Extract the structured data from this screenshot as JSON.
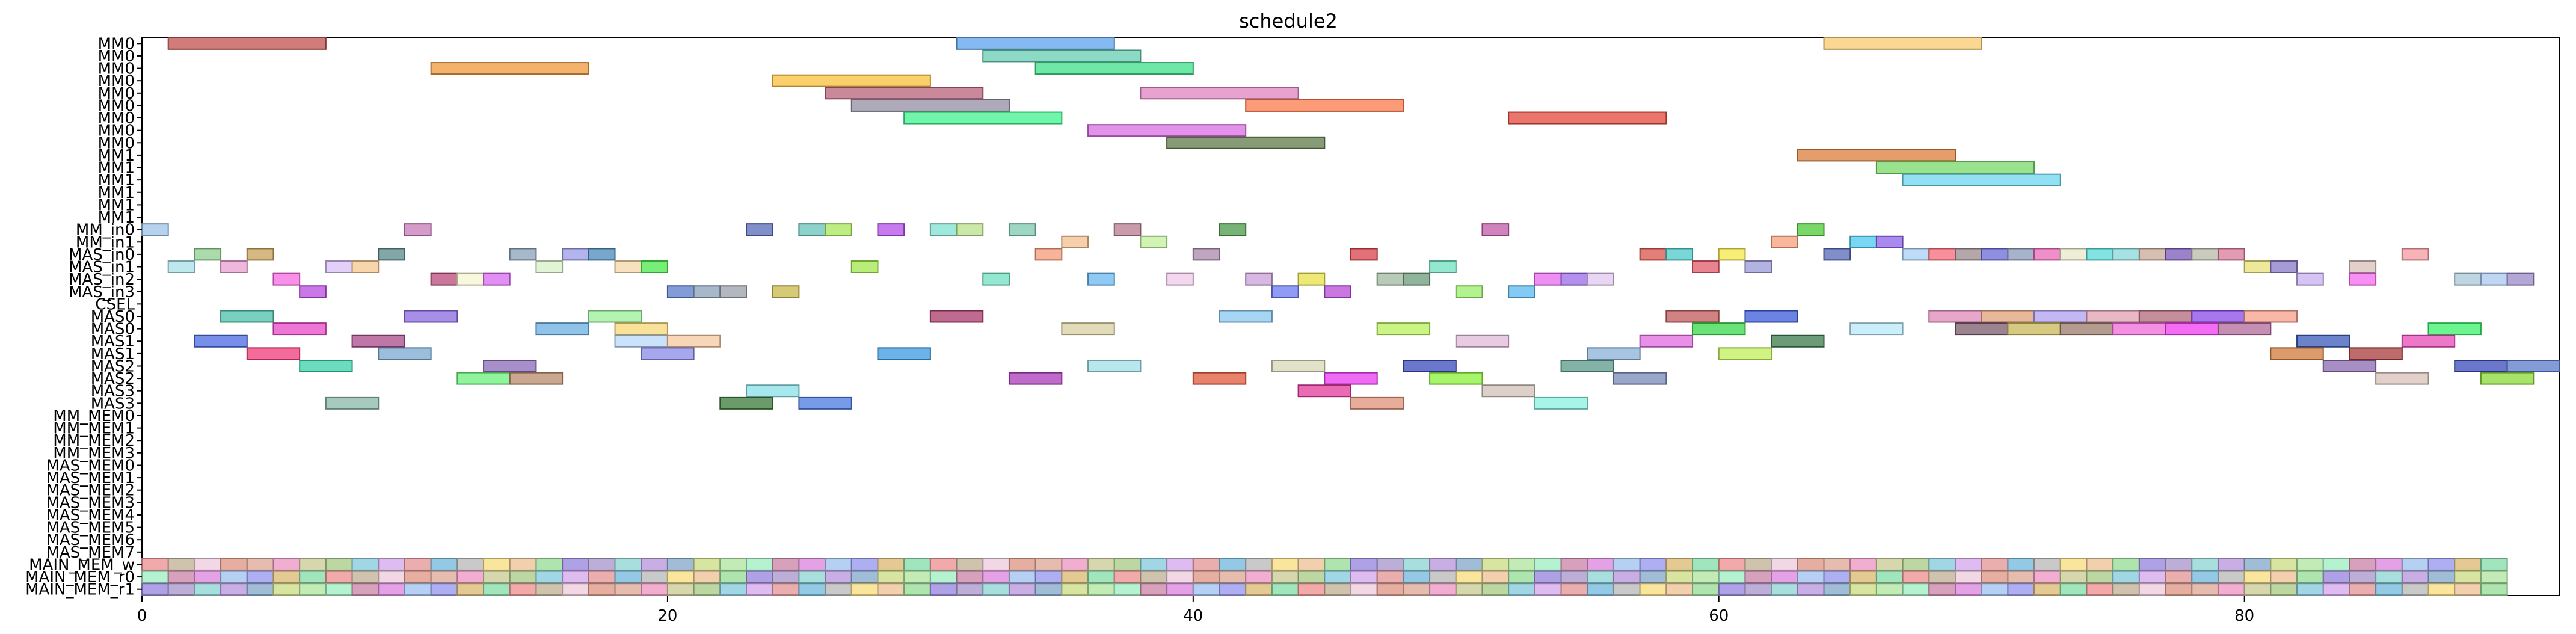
{
  "chart_data": {
    "type": "gantt",
    "title": "schedule2",
    "xlabel": "",
    "ylabel": "",
    "xlim": [
      0,
      92
    ],
    "x_ticks": [
      0,
      20,
      40,
      60,
      80
    ],
    "grid": false,
    "legend": "none",
    "rows": [
      "MM0",
      "MM0",
      "MM0",
      "MM0",
      "MM0",
      "MM0",
      "MM0",
      "MM0",
      "MM0",
      "MM1",
      "MM1",
      "MM1",
      "MM1",
      "MM1",
      "MM1",
      "MM_in0",
      "MM_in1",
      "MAS_in0",
      "MAS_in1",
      "MAS_in2",
      "MAS_in3",
      "CSEL",
      "MAS0",
      "MAS0",
      "MAS1",
      "MAS1",
      "MAS2",
      "MAS2",
      "MAS3",
      "MAS3",
      "MM_MEM0",
      "MM_MEM1",
      "MM_MEM2",
      "MM_MEM3",
      "MAS_MEM0",
      "MAS_MEM1",
      "MAS_MEM2",
      "MAS_MEM3",
      "MAS_MEM4",
      "MAS_MEM5",
      "MAS_MEM6",
      "MAS_MEM7",
      "MAIN_MEM_w",
      "MAIN_MEM_r0",
      "MAIN_MEM_r1"
    ],
    "segments": [
      {
        "row": 0,
        "start": 1,
        "end": 7,
        "color": "#c0504d"
      },
      {
        "row": 0,
        "start": 31,
        "end": 37,
        "color": "#5ba3ec"
      },
      {
        "row": 0,
        "start": 64,
        "end": 70,
        "color": "#f8c96e"
      },
      {
        "row": 1,
        "start": 32,
        "end": 38,
        "color": "#66ccb3"
      },
      {
        "row": 2,
        "start": 11,
        "end": 17,
        "color": "#ef9a3e"
      },
      {
        "row": 2,
        "start": 34,
        "end": 40,
        "color": "#3fdf8a"
      },
      {
        "row": 3,
        "start": 24,
        "end": 30,
        "color": "#fbbf3c"
      },
      {
        "row": 4,
        "start": 26,
        "end": 32,
        "color": "#b8627a"
      },
      {
        "row": 4,
        "start": 38,
        "end": 44,
        "color": "#e083c0"
      },
      {
        "row": 5,
        "start": 27,
        "end": 33,
        "color": "#938ea3"
      },
      {
        "row": 5,
        "start": 42,
        "end": 48,
        "color": "#fb7a4a"
      },
      {
        "row": 6,
        "start": 29,
        "end": 35,
        "color": "#3ff38e"
      },
      {
        "row": 6,
        "start": 52,
        "end": 58,
        "color": "#e3473a"
      },
      {
        "row": 7,
        "start": 36,
        "end": 42,
        "color": "#d86de0"
      },
      {
        "row": 8,
        "start": 39,
        "end": 45,
        "color": "#5f7a4a"
      },
      {
        "row": 9,
        "start": 63,
        "end": 69,
        "color": "#db7e3a"
      },
      {
        "row": 10,
        "start": 66,
        "end": 72,
        "color": "#77d96a"
      },
      {
        "row": 11,
        "start": 67,
        "end": 73,
        "color": "#6ed6ef"
      },
      {
        "row": 15,
        "start": 0,
        "end": 1,
        "color": "#9fc3e8"
      },
      {
        "row": 15,
        "start": 10,
        "end": 11,
        "color": "#c77ab8"
      },
      {
        "row": 15,
        "start": 23,
        "end": 24,
        "color": "#5568b8"
      },
      {
        "row": 15,
        "start": 25,
        "end": 26,
        "color": "#66c2b8"
      },
      {
        "row": 15,
        "start": 26,
        "end": 27,
        "color": "#a8e85a"
      },
      {
        "row": 15,
        "start": 28,
        "end": 29,
        "color": "#b44ee8"
      },
      {
        "row": 15,
        "start": 30,
        "end": 31,
        "color": "#7fe0d0"
      },
      {
        "row": 15,
        "start": 31,
        "end": 32,
        "color": "#b8e08a"
      },
      {
        "row": 15,
        "start": 33,
        "end": 34,
        "color": "#7cc9b0"
      },
      {
        "row": 15,
        "start": 37,
        "end": 38,
        "color": "#b87a8e"
      },
      {
        "row": 15,
        "start": 41,
        "end": 42,
        "color": "#4a9a4a"
      },
      {
        "row": 15,
        "start": 51,
        "end": 52,
        "color": "#c25aa8"
      },
      {
        "row": 15,
        "start": 63,
        "end": 64,
        "color": "#4ecb3a"
      },
      {
        "row": 16,
        "start": 35,
        "end": 36,
        "color": "#f2c08e"
      },
      {
        "row": 16,
        "start": 38,
        "end": 39,
        "color": "#c2ef9a"
      },
      {
        "row": 16,
        "start": 62,
        "end": 63,
        "color": "#f7a07a"
      },
      {
        "row": 16,
        "start": 65,
        "end": 66,
        "color": "#4cc9f0"
      },
      {
        "row": 16,
        "start": 66,
        "end": 67,
        "color": "#8e63e8"
      },
      {
        "row": 17,
        "start": 2,
        "end": 3,
        "color": "#8fcf8e"
      },
      {
        "row": 17,
        "start": 4,
        "end": 5,
        "color": "#c8a05a"
      },
      {
        "row": 17,
        "start": 9,
        "end": 10,
        "color": "#5a8a8a"
      },
      {
        "row": 17,
        "start": 14,
        "end": 15,
        "color": "#8aa0b8"
      },
      {
        "row": 17,
        "start": 16,
        "end": 17,
        "color": "#9a9ae8"
      },
      {
        "row": 17,
        "start": 17,
        "end": 18,
        "color": "#4a8ab8"
      },
      {
        "row": 17,
        "start": 34,
        "end": 35,
        "color": "#f59a7a"
      },
      {
        "row": 17,
        "start": 40,
        "end": 41,
        "color": "#a88aa8"
      },
      {
        "row": 17,
        "start": 46,
        "end": 47,
        "color": "#d8404a"
      },
      {
        "row": 17,
        "start": 57,
        "end": 58,
        "color": "#d8544a"
      },
      {
        "row": 17,
        "start": 58,
        "end": 59,
        "color": "#4ec9c9"
      },
      {
        "row": 17,
        "start": 60,
        "end": 61,
        "color": "#f5e84a"
      },
      {
        "row": 17,
        "start": 64,
        "end": 65,
        "color": "#5568b8"
      },
      {
        "row": 17,
        "start": 67,
        "end": 68,
        "color": "#a8d0f5"
      },
      {
        "row": 17,
        "start": 68,
        "end": 69,
        "color": "#f56a7a"
      },
      {
        "row": 17,
        "start": 69,
        "end": 70,
        "color": "#9a8a8e"
      },
      {
        "row": 17,
        "start": 70,
        "end": 71,
        "color": "#6a6ad8"
      },
      {
        "row": 17,
        "start": 71,
        "end": 72,
        "color": "#8a9ab8"
      },
      {
        "row": 17,
        "start": 72,
        "end": 73,
        "color": "#e86ab8"
      },
      {
        "row": 17,
        "start": 73,
        "end": 74,
        "color": "#e8e8c8"
      },
      {
        "row": 17,
        "start": 74,
        "end": 75,
        "color": "#5ad8d8"
      },
      {
        "row": 17,
        "start": 75,
        "end": 76,
        "color": "#8ad8d8"
      },
      {
        "row": 17,
        "start": 76,
        "end": 77,
        "color": "#c8a89a"
      },
      {
        "row": 17,
        "start": 77,
        "end": 78,
        "color": "#7a5ab8"
      },
      {
        "row": 17,
        "start": 78,
        "end": 79,
        "color": "#b8b8a8"
      },
      {
        "row": 17,
        "start": 79,
        "end": 80,
        "color": "#d87a9a"
      },
      {
        "row": 17,
        "start": 86,
        "end": 87,
        "color": "#f59aa0"
      },
      {
        "row": 18,
        "start": 1,
        "end": 2,
        "color": "#a8e0e8"
      },
      {
        "row": 18,
        "start": 3,
        "end": 4,
        "color": "#e8a0d0"
      },
      {
        "row": 18,
        "start": 7,
        "end": 8,
        "color": "#d8c0f5"
      },
      {
        "row": 18,
        "start": 8,
        "end": 9,
        "color": "#f5c890"
      },
      {
        "row": 18,
        "start": 15,
        "end": 16,
        "color": "#d8f0c8"
      },
      {
        "row": 18,
        "start": 18,
        "end": 19,
        "color": "#f5d8a8"
      },
      {
        "row": 18,
        "start": 19,
        "end": 20,
        "color": "#4ae84a"
      },
      {
        "row": 18,
        "start": 27,
        "end": 28,
        "color": "#a0e84a"
      },
      {
        "row": 18,
        "start": 49,
        "end": 50,
        "color": "#70e0c0"
      },
      {
        "row": 18,
        "start": 59,
        "end": 60,
        "color": "#e05a6a"
      },
      {
        "row": 18,
        "start": 61,
        "end": 62,
        "color": "#9a9ad8"
      },
      {
        "row": 18,
        "start": 80,
        "end": 81,
        "color": "#e8e07a"
      },
      {
        "row": 18,
        "start": 81,
        "end": 82,
        "color": "#8a7ac8"
      },
      {
        "row": 18,
        "start": 84,
        "end": 85,
        "color": "#d8c0b8"
      },
      {
        "row": 19,
        "start": 5,
        "end": 6,
        "color": "#f56ae0"
      },
      {
        "row": 19,
        "start": 11,
        "end": 12,
        "color": "#b84a7a"
      },
      {
        "row": 19,
        "start": 12,
        "end": 13,
        "color": "#f5f5d0"
      },
      {
        "row": 19,
        "start": 13,
        "end": 14,
        "color": "#d86af0"
      },
      {
        "row": 19,
        "start": 32,
        "end": 33,
        "color": "#70dfc0"
      },
      {
        "row": 19,
        "start": 36,
        "end": 37,
        "color": "#6ab8f0"
      },
      {
        "row": 19,
        "start": 39,
        "end": 40,
        "color": "#f0c8e8"
      },
      {
        "row": 19,
        "start": 42,
        "end": 43,
        "color": "#c8a0d8"
      },
      {
        "row": 19,
        "start": 44,
        "end": 45,
        "color": "#e8e04a"
      },
      {
        "row": 19,
        "start": 47,
        "end": 48,
        "color": "#a0b8a0"
      },
      {
        "row": 19,
        "start": 48,
        "end": 49,
        "color": "#6a9a7a"
      },
      {
        "row": 19,
        "start": 53,
        "end": 54,
        "color": "#e86af0"
      },
      {
        "row": 19,
        "start": 54,
        "end": 55,
        "color": "#9a6ae8"
      },
      {
        "row": 19,
        "start": 55,
        "end": 56,
        "color": "#e0c8f0"
      },
      {
        "row": 19,
        "start": 82,
        "end": 83,
        "color": "#c8b0f0"
      },
      {
        "row": 19,
        "start": 84,
        "end": 85,
        "color": "#f56af0"
      },
      {
        "row": 19,
        "start": 88,
        "end": 89,
        "color": "#a8c8d8"
      },
      {
        "row": 19,
        "start": 89,
        "end": 90,
        "color": "#a8c8f0"
      },
      {
        "row": 19,
        "start": 90,
        "end": 91,
        "color": "#9a8ac8"
      },
      {
        "row": 20,
        "start": 6,
        "end": 7,
        "color": "#b84ae0"
      },
      {
        "row": 20,
        "start": 20,
        "end": 21,
        "color": "#5a7ac8"
      },
      {
        "row": 20,
        "start": 21,
        "end": 22,
        "color": "#8aa0b8"
      },
      {
        "row": 20,
        "start": 22,
        "end": 23,
        "color": "#9aa0a8"
      },
      {
        "row": 20,
        "start": 24,
        "end": 25,
        "color": "#c8b84a"
      },
      {
        "row": 20,
        "start": 43,
        "end": 44,
        "color": "#6a7af0"
      },
      {
        "row": 20,
        "start": 45,
        "end": 46,
        "color": "#b84ad8"
      },
      {
        "row": 20,
        "start": 50,
        "end": 51,
        "color": "#9aef6a"
      },
      {
        "row": 20,
        "start": 52,
        "end": 53,
        "color": "#5ab8f0"
      },
      {
        "row": 22,
        "start": 3,
        "end": 5,
        "color": "#4ec0a8"
      },
      {
        "row": 22,
        "start": 10,
        "end": 12,
        "color": "#8a6ae0"
      },
      {
        "row": 22,
        "start": 17,
        "end": 19,
        "color": "#9af09a"
      },
      {
        "row": 22,
        "start": 30,
        "end": 32,
        "color": "#a83a6a"
      },
      {
        "row": 22,
        "start": 41,
        "end": 43,
        "color": "#8ac8f0"
      },
      {
        "row": 22,
        "start": 58,
        "end": 60,
        "color": "#c05a5a"
      },
      {
        "row": 22,
        "start": 61,
        "end": 63,
        "color": "#3a5ad8"
      },
      {
        "row": 22,
        "start": 68,
        "end": 70,
        "color": "#e08ab8"
      },
      {
        "row": 22,
        "start": 70,
        "end": 72,
        "color": "#e0a07a"
      },
      {
        "row": 22,
        "start": 72,
        "end": 74,
        "color": "#b0a0f0"
      },
      {
        "row": 22,
        "start": 74,
        "end": 76,
        "color": "#e0a0b0"
      },
      {
        "row": 22,
        "start": 76,
        "end": 78,
        "color": "#b06a7a"
      },
      {
        "row": 22,
        "start": 78,
        "end": 80,
        "color": "#8a4ae8"
      },
      {
        "row": 22,
        "start": 80,
        "end": 82,
        "color": "#f5a08a"
      },
      {
        "row": 23,
        "start": 5,
        "end": 7,
        "color": "#e84ac8"
      },
      {
        "row": 23,
        "start": 15,
        "end": 17,
        "color": "#6ab0e0"
      },
      {
        "row": 23,
        "start": 18,
        "end": 20,
        "color": "#f5d878"
      },
      {
        "row": 23,
        "start": 35,
        "end": 37,
        "color": "#d8cfa0"
      },
      {
        "row": 23,
        "start": 47,
        "end": 49,
        "color": "#b8f05a"
      },
      {
        "row": 23,
        "start": 59,
        "end": 61,
        "color": "#3ad84a"
      },
      {
        "row": 23,
        "start": 65,
        "end": 67,
        "color": "#b8e8f8"
      },
      {
        "row": 23,
        "start": 69,
        "end": 71,
        "color": "#7a5a6a"
      },
      {
        "row": 23,
        "start": 71,
        "end": 73,
        "color": "#c8b85a"
      },
      {
        "row": 23,
        "start": 73,
        "end": 75,
        "color": "#9a7a6a"
      },
      {
        "row": 23,
        "start": 75,
        "end": 77,
        "color": "#f06ad8"
      },
      {
        "row": 23,
        "start": 77,
        "end": 79,
        "color": "#f03af0"
      },
      {
        "row": 23,
        "start": 79,
        "end": 81,
        "color": "#b06a9a"
      },
      {
        "row": 23,
        "start": 87,
        "end": 89,
        "color": "#3af06a"
      },
      {
        "row": 24,
        "start": 2,
        "end": 4,
        "color": "#4a6ae0"
      },
      {
        "row": 24,
        "start": 8,
        "end": 10,
        "color": "#a84a8a"
      },
      {
        "row": 24,
        "start": 18,
        "end": 20,
        "color": "#b8d8f8"
      },
      {
        "row": 24,
        "start": 20,
        "end": 22,
        "color": "#f5c8a0"
      },
      {
        "row": 24,
        "start": 50,
        "end": 52,
        "color": "#e0b8d8"
      },
      {
        "row": 24,
        "start": 57,
        "end": 59,
        "color": "#e06ae0"
      },
      {
        "row": 24,
        "start": 62,
        "end": 64,
        "color": "#3a7a4a"
      },
      {
        "row": 24,
        "start": 82,
        "end": 84,
        "color": "#3a5ab8"
      },
      {
        "row": 24,
        "start": 86,
        "end": 88,
        "color": "#e84ab8"
      },
      {
        "row": 25,
        "start": 4,
        "end": 6,
        "color": "#f03a7a"
      },
      {
        "row": 25,
        "start": 9,
        "end": 11,
        "color": "#7aa8d0"
      },
      {
        "row": 25,
        "start": 19,
        "end": 21,
        "color": "#8a8ae8"
      },
      {
        "row": 25,
        "start": 28,
        "end": 30,
        "color": "#3a9ae0"
      },
      {
        "row": 25,
        "start": 55,
        "end": 57,
        "color": "#8ab0d8"
      },
      {
        "row": 25,
        "start": 60,
        "end": 62,
        "color": "#c0f05a"
      },
      {
        "row": 25,
        "start": 81,
        "end": 83,
        "color": "#d07a3a"
      },
      {
        "row": 25,
        "start": 84,
        "end": 86,
        "color": "#a83a3a"
      },
      {
        "row": 26,
        "start": 6,
        "end": 8,
        "color": "#3ad0a8"
      },
      {
        "row": 26,
        "start": 13,
        "end": 15,
        "color": "#8a6ab8"
      },
      {
        "row": 26,
        "start": 36,
        "end": 38,
        "color": "#a0e0e8"
      },
      {
        "row": 26,
        "start": 43,
        "end": 45,
        "color": "#d8d8b8"
      },
      {
        "row": 26,
        "start": 48,
        "end": 50,
        "color": "#3a4ab8"
      },
      {
        "row": 26,
        "start": 54,
        "end": 56,
        "color": "#5a9a8a"
      },
      {
        "row": 26,
        "start": 83,
        "end": 85,
        "color": "#8a6ab0"
      },
      {
        "row": 26,
        "start": 88,
        "end": 90,
        "color": "#3a4ab8"
      },
      {
        "row": 26,
        "start": 90,
        "end": 92,
        "color": "#5a7ac8"
      },
      {
        "row": 27,
        "start": 12,
        "end": 14,
        "color": "#6af07a"
      },
      {
        "row": 27,
        "start": 14,
        "end": 16,
        "color": "#b88a6a"
      },
      {
        "row": 27,
        "start": 33,
        "end": 35,
        "color": "#a83ab8"
      },
      {
        "row": 27,
        "start": 40,
        "end": 42,
        "color": "#e0583a"
      },
      {
        "row": 27,
        "start": 45,
        "end": 47,
        "color": "#e83af0"
      },
      {
        "row": 27,
        "start": 49,
        "end": 51,
        "color": "#8af03a"
      },
      {
        "row": 27,
        "start": 56,
        "end": 58,
        "color": "#7a8ab8"
      },
      {
        "row": 27,
        "start": 85,
        "end": 87,
        "color": "#d8c0b8"
      },
      {
        "row": 27,
        "start": 89,
        "end": 91,
        "color": "#8ad83a"
      },
      {
        "row": 28,
        "start": 23,
        "end": 25,
        "color": "#8ae0e8"
      },
      {
        "row": 28,
        "start": 44,
        "end": 46,
        "color": "#e03a9a"
      },
      {
        "row": 28,
        "start": 51,
        "end": 53,
        "color": "#d0c0b8"
      },
      {
        "row": 29,
        "start": 7,
        "end": 9,
        "color": "#8ab8a8"
      },
      {
        "row": 29,
        "start": 22,
        "end": 24,
        "color": "#3a7a3a"
      },
      {
        "row": 29,
        "start": 25,
        "end": 27,
        "color": "#4a7ae0"
      },
      {
        "row": 29,
        "start": 46,
        "end": 48,
        "color": "#e0907a"
      },
      {
        "row": 29,
        "start": 53,
        "end": 55,
        "color": "#8af0e0"
      }
    ],
    "memory_rows": [
      42,
      43,
      44
    ],
    "memory_colors": [
      "#ef9a9a",
      "#f8e08a",
      "#a8c8f0",
      "#d8b0f0",
      "#b8e8a8",
      "#f0a0c8",
      "#9ad8d8",
      "#c8b8a0",
      "#f0c8a0",
      "#a0a0f0",
      "#e8a0a0",
      "#a8f0c8",
      "#d0d0a0",
      "#c0a0e0",
      "#f0d0e0",
      "#a0e0a0",
      "#e0c080",
      "#80c0e0",
      "#d090b0",
      "#b0d090",
      "#90b0d0",
      "#e0a090",
      "#a090e0",
      "#90e0b0",
      "#c0c0c0",
      "#e090e0",
      "#90d0e0",
      "#d0e090",
      "#e0b0a0",
      "#b0a0d0"
    ],
    "memory_span": [
      0,
      90
    ]
  }
}
